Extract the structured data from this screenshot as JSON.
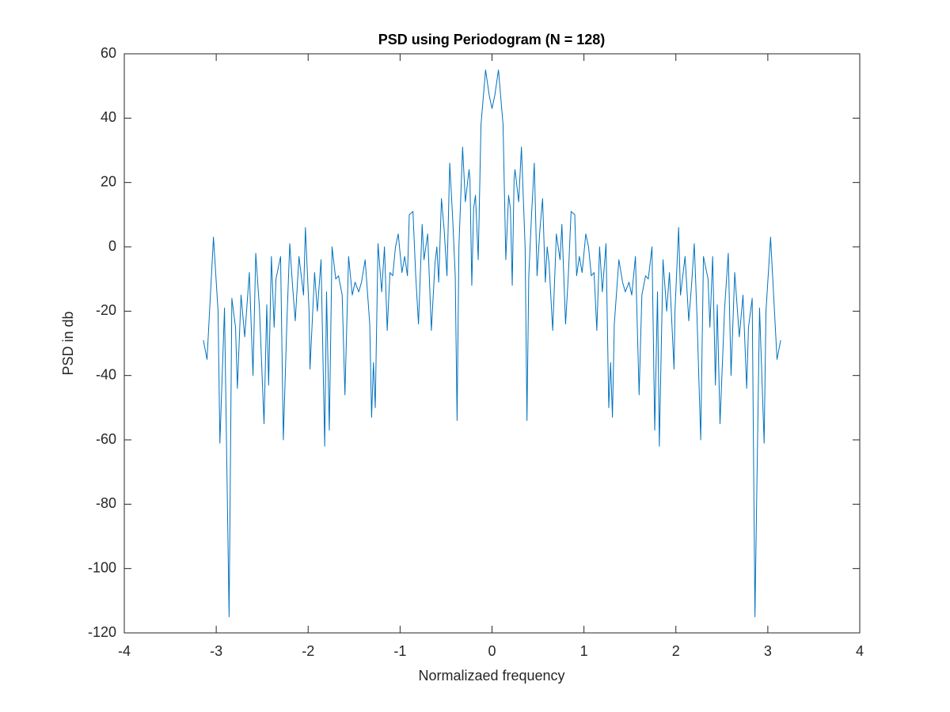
{
  "chart_data": {
    "type": "line",
    "title": "PSD using Periodogram (N = 128)",
    "x_label": "Normalizaed frequency",
    "y_label": "PSD in db",
    "xlim": [
      -4,
      4
    ],
    "xticks": [
      -4,
      -3,
      -2,
      -1,
      0,
      1,
      2,
      3,
      4
    ],
    "ylim": [
      -120,
      60
    ],
    "yticks": [
      -120,
      -100,
      -80,
      -60,
      -40,
      -20,
      0,
      20,
      40,
      60
    ],
    "grid": false,
    "x": [
      -3.14,
      -3.1,
      -3.03,
      -2.98,
      -2.96,
      -2.91,
      -2.86,
      -2.83,
      -2.79,
      -2.77,
      -2.73,
      -2.69,
      -2.64,
      -2.6,
      -2.57,
      -2.53,
      -2.48,
      -2.45,
      -2.43,
      -2.4,
      -2.37,
      -2.35,
      -2.3,
      -2.27,
      -2.23,
      -2.2,
      -2.17,
      -2.14,
      -2.1,
      -2.05,
      -2.03,
      -1.99,
      -1.98,
      -1.93,
      -1.9,
      -1.86,
      -1.82,
      -1.8,
      -1.77,
      -1.74,
      -1.7,
      -1.67,
      -1.63,
      -1.6,
      -1.56,
      -1.52,
      -1.49,
      -1.45,
      -1.42,
      -1.38,
      -1.33,
      -1.31,
      -1.29,
      -1.27,
      -1.24,
      -1.2,
      -1.17,
      -1.14,
      -1.11,
      -1.08,
      -1.05,
      -1.02,
      -0.98,
      -0.95,
      -0.92,
      -0.9,
      -0.86,
      -0.83,
      -0.8,
      -0.76,
      -0.74,
      -0.7,
      -0.66,
      -0.62,
      -0.6,
      -0.58,
      -0.55,
      -0.52,
      -0.49,
      -0.46,
      -0.43,
      -0.4,
      -0.38,
      -0.36,
      -0.32,
      -0.29,
      -0.25,
      -0.24,
      -0.22,
      -0.2,
      -0.18,
      -0.15,
      -0.12,
      -0.07,
      -0.03,
      0,
      0.03,
      0.07,
      0.12,
      0.15,
      0.18,
      0.2,
      0.22,
      0.24,
      0.25,
      0.29,
      0.32,
      0.36,
      0.38,
      0.4,
      0.43,
      0.46,
      0.49,
      0.52,
      0.55,
      0.58,
      0.6,
      0.62,
      0.66,
      0.7,
      0.74,
      0.76,
      0.8,
      0.83,
      0.86,
      0.9,
      0.92,
      0.95,
      0.98,
      1.02,
      1.05,
      1.08,
      1.11,
      1.14,
      1.17,
      1.2,
      1.24,
      1.27,
      1.29,
      1.31,
      1.33,
      1.38,
      1.42,
      1.45,
      1.49,
      1.52,
      1.56,
      1.6,
      1.63,
      1.67,
      1.7,
      1.74,
      1.77,
      1.8,
      1.82,
      1.86,
      1.9,
      1.93,
      1.98,
      1.99,
      2.03,
      2.05,
      2.1,
      2.14,
      2.17,
      2.2,
      2.23,
      2.27,
      2.3,
      2.35,
      2.37,
      2.4,
      2.43,
      2.45,
      2.48,
      2.53,
      2.57,
      2.6,
      2.64,
      2.69,
      2.73,
      2.77,
      2.79,
      2.83,
      2.86,
      2.91,
      2.96,
      2.98,
      3.03,
      3.1,
      3.14
    ],
    "series": [
      {
        "color": "#0072bd",
        "values": [
          -29,
          -35,
          3,
          -20,
          -61,
          -19,
          -115,
          -16,
          -25,
          -44,
          -15,
          -28,
          -8,
          -40,
          -2,
          -19,
          -55,
          -18,
          -43,
          -3,
          -25,
          -10,
          -3,
          -60,
          -22,
          1,
          -12,
          -23,
          -3,
          -15,
          6,
          -20,
          -38,
          -8,
          -20,
          -4,
          -62,
          -14,
          -57,
          0,
          -10,
          -9,
          -15,
          -46,
          -3,
          -15,
          -11,
          -14,
          -11,
          -4,
          -24,
          -53,
          -36,
          -50,
          1,
          -14,
          0,
          -26,
          -8,
          -9,
          0,
          4,
          -8,
          -3,
          -9,
          10,
          11,
          -9,
          -24,
          7,
          -4,
          4,
          -26,
          -5,
          0,
          -11,
          15,
          5,
          -9,
          26,
          10,
          -9,
          -54,
          0,
          31,
          14,
          24,
          21,
          -12,
          12,
          16,
          -4,
          38,
          55,
          47,
          43,
          47,
          55,
          38,
          -4,
          16,
          12,
          -12,
          21,
          24,
          14,
          31,
          0,
          -54,
          -9,
          10,
          26,
          -9,
          5,
          15,
          -11,
          0,
          -5,
          -26,
          4,
          -4,
          7,
          -24,
          -9,
          11,
          10,
          -9,
          -3,
          -8,
          4,
          0,
          -9,
          -8,
          -26,
          0,
          -14,
          1,
          -50,
          -36,
          -53,
          -24,
          -4,
          -11,
          -14,
          -11,
          -15,
          -3,
          -46,
          -15,
          -9,
          -10,
          0,
          -57,
          -14,
          -62,
          -4,
          -20,
          -8,
          -38,
          -20,
          6,
          -15,
          -3,
          -23,
          -12,
          1,
          -22,
          -60,
          -3,
          -10,
          -25,
          -3,
          -43,
          -18,
          -55,
          -19,
          -2,
          -40,
          -8,
          -28,
          -15,
          -44,
          -25,
          -16,
          -115,
          -19,
          -61,
          -20,
          3,
          -35,
          -29
        ]
      }
    ]
  }
}
